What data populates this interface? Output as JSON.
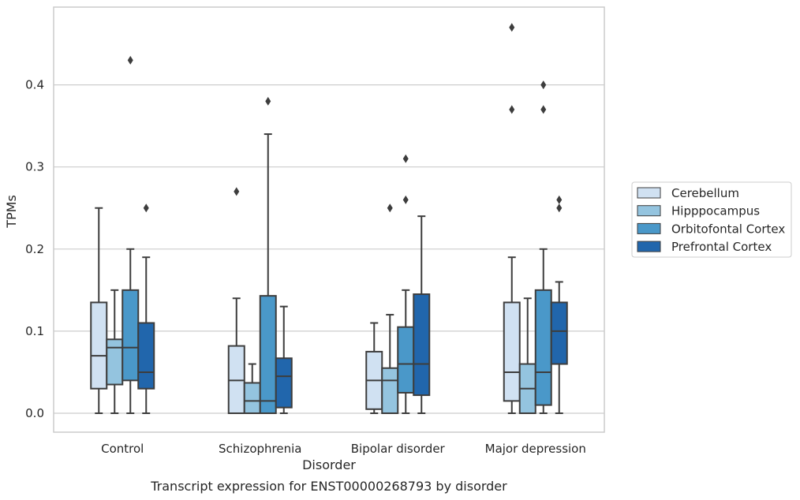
{
  "caption": "Transcript expression for ENST00000268793 by disorder",
  "chart_data": {
    "type": "boxplot",
    "xlabel": "Disorder",
    "ylabel": "TPMs",
    "ylim": [
      -0.022,
      0.495
    ],
    "yticks": [
      "0.0",
      "0.1",
      "0.2",
      "0.3",
      "0.4"
    ],
    "grid": "horizontal",
    "legend_position": "right",
    "categories": [
      "Control",
      "Schizophrenia",
      "Bipolar disorder",
      "Major depression"
    ],
    "hue": [
      {
        "name": "Cerebellum",
        "color": "#d0e1f2"
      },
      {
        "name": "Hipppocampus",
        "color": "#94c4df"
      },
      {
        "name": "Orbitofontal Cortex",
        "color": "#4a98c9"
      },
      {
        "name": "Prefrontal Cortex",
        "color": "#2166ac"
      }
    ],
    "boxes": [
      [
        {
          "whisker_low": 0.0,
          "q1": 0.03,
          "median": 0.07,
          "q3": 0.135,
          "whisker_high": 0.25,
          "outliers": []
        },
        {
          "whisker_low": 0.0,
          "q1": 0.035,
          "median": 0.08,
          "q3": 0.09,
          "whisker_high": 0.15,
          "outliers": []
        },
        {
          "whisker_low": 0.0,
          "q1": 0.04,
          "median": 0.08,
          "q3": 0.15,
          "whisker_high": 0.2,
          "outliers": [
            0.43
          ]
        },
        {
          "whisker_low": 0.0,
          "q1": 0.03,
          "median": 0.05,
          "q3": 0.11,
          "whisker_high": 0.19,
          "outliers": [
            0.25
          ]
        }
      ],
      [
        {
          "whisker_low": 0.0,
          "q1": 0.0,
          "median": 0.04,
          "q3": 0.082,
          "whisker_high": 0.14,
          "outliers": [
            0.27
          ]
        },
        {
          "whisker_low": 0.0,
          "q1": 0.0,
          "median": 0.015,
          "q3": 0.037,
          "whisker_high": 0.06,
          "outliers": []
        },
        {
          "whisker_low": 0.0,
          "q1": 0.0,
          "median": 0.015,
          "q3": 0.143,
          "whisker_high": 0.34,
          "outliers": [
            0.38
          ]
        },
        {
          "whisker_low": 0.0,
          "q1": 0.007,
          "median": 0.045,
          "q3": 0.067,
          "whisker_high": 0.13,
          "outliers": []
        }
      ],
      [
        {
          "whisker_low": 0.0,
          "q1": 0.005,
          "median": 0.04,
          "q3": 0.075,
          "whisker_high": 0.11,
          "outliers": []
        },
        {
          "whisker_low": 0.0,
          "q1": 0.0,
          "median": 0.04,
          "q3": 0.055,
          "whisker_high": 0.12,
          "outliers": [
            0.25
          ]
        },
        {
          "whisker_low": 0.0,
          "q1": 0.025,
          "median": 0.06,
          "q3": 0.105,
          "whisker_high": 0.15,
          "outliers": [
            0.26,
            0.31
          ]
        },
        {
          "whisker_low": 0.0,
          "q1": 0.022,
          "median": 0.06,
          "q3": 0.145,
          "whisker_high": 0.24,
          "outliers": []
        }
      ],
      [
        {
          "whisker_low": 0.0,
          "q1": 0.015,
          "median": 0.05,
          "q3": 0.135,
          "whisker_high": 0.19,
          "outliers": [
            0.37,
            0.47
          ]
        },
        {
          "whisker_low": 0.0,
          "q1": 0.0,
          "median": 0.03,
          "q3": 0.06,
          "whisker_high": 0.14,
          "outliers": []
        },
        {
          "whisker_low": 0.0,
          "q1": 0.01,
          "median": 0.05,
          "q3": 0.15,
          "whisker_high": 0.2,
          "outliers": [
            0.37,
            0.4
          ]
        },
        {
          "whisker_low": 0.0,
          "q1": 0.06,
          "median": 0.1,
          "q3": 0.135,
          "whisker_high": 0.16,
          "outliers": [
            0.25,
            0.26
          ]
        }
      ]
    ]
  }
}
